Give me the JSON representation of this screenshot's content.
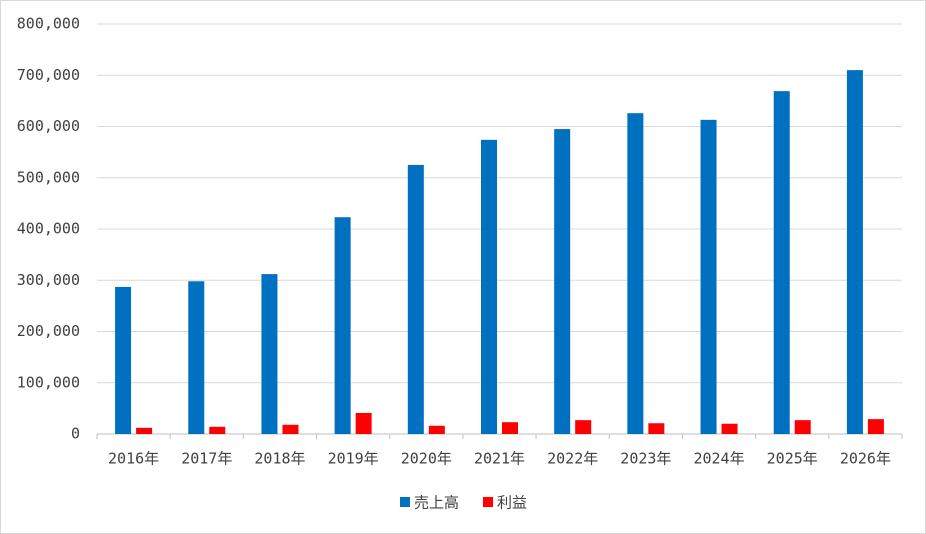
{
  "chart_data": {
    "type": "bar",
    "categories": [
      "2016年",
      "2017年",
      "2018年",
      "2019年",
      "2020年",
      "2021年",
      "2022年",
      "2023年",
      "2024年",
      "2025年",
      "2026年"
    ],
    "series": [
      {
        "name": "売上高",
        "color": "#0070c0",
        "values": [
          287000,
          298000,
          312000,
          423000,
          525000,
          574000,
          595000,
          626000,
          613000,
          669000,
          710000
        ]
      },
      {
        "name": "利益",
        "color": "#ff0000",
        "values": [
          12000,
          14000,
          18000,
          41000,
          16000,
          23000,
          27000,
          21000,
          20000,
          27000,
          29000
        ]
      }
    ],
    "ylim": [
      0,
      800000
    ],
    "yticks": [
      0,
      {
        "value": 100000,
        "label": "100,000"
      },
      {
        "value": 200000,
        "label": "200,000"
      },
      {
        "value": 300000,
        "label": "300,000"
      },
      {
        "value": 400000,
        "label": "400,000"
      },
      {
        "value": 500000,
        "label": "500,000"
      },
      {
        "value": 600000,
        "label": "600,000"
      },
      {
        "value": 700000,
        "label": "700,000"
      },
      {
        "value": 800000,
        "label": "800,000"
      }
    ],
    "grid": true,
    "legend": "bottom"
  }
}
